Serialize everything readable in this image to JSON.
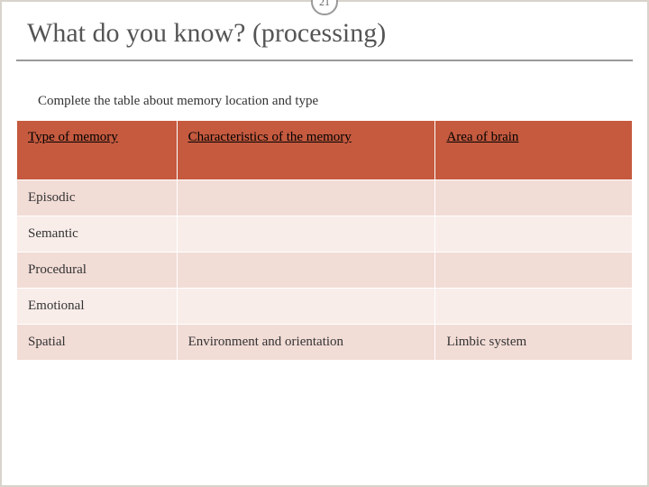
{
  "title": "What do you know? (processing)",
  "page_number": "21",
  "subtitle": "Complete the table about memory location and type",
  "table": {
    "columns": [
      "Type of memory",
      "Characteristics of the memory",
      "Area of brain"
    ],
    "rows": [
      {
        "type": "Episodic",
        "characteristics": "",
        "area": ""
      },
      {
        "type": "Semantic",
        "characteristics": "",
        "area": ""
      },
      {
        "type": "Procedural",
        "characteristics": "",
        "area": ""
      },
      {
        "type": "Emotional",
        "characteristics": "",
        "area": ""
      },
      {
        "type": "Spatial",
        "characteristics": "Environment and orientation",
        "area": "Limbic system"
      }
    ]
  },
  "colors": {
    "header_bg": "#c55a3f",
    "row_odd": "#f2dcd6",
    "row_even": "#f8ede9",
    "border": "#d8d4cc",
    "title_text": "#555555"
  }
}
